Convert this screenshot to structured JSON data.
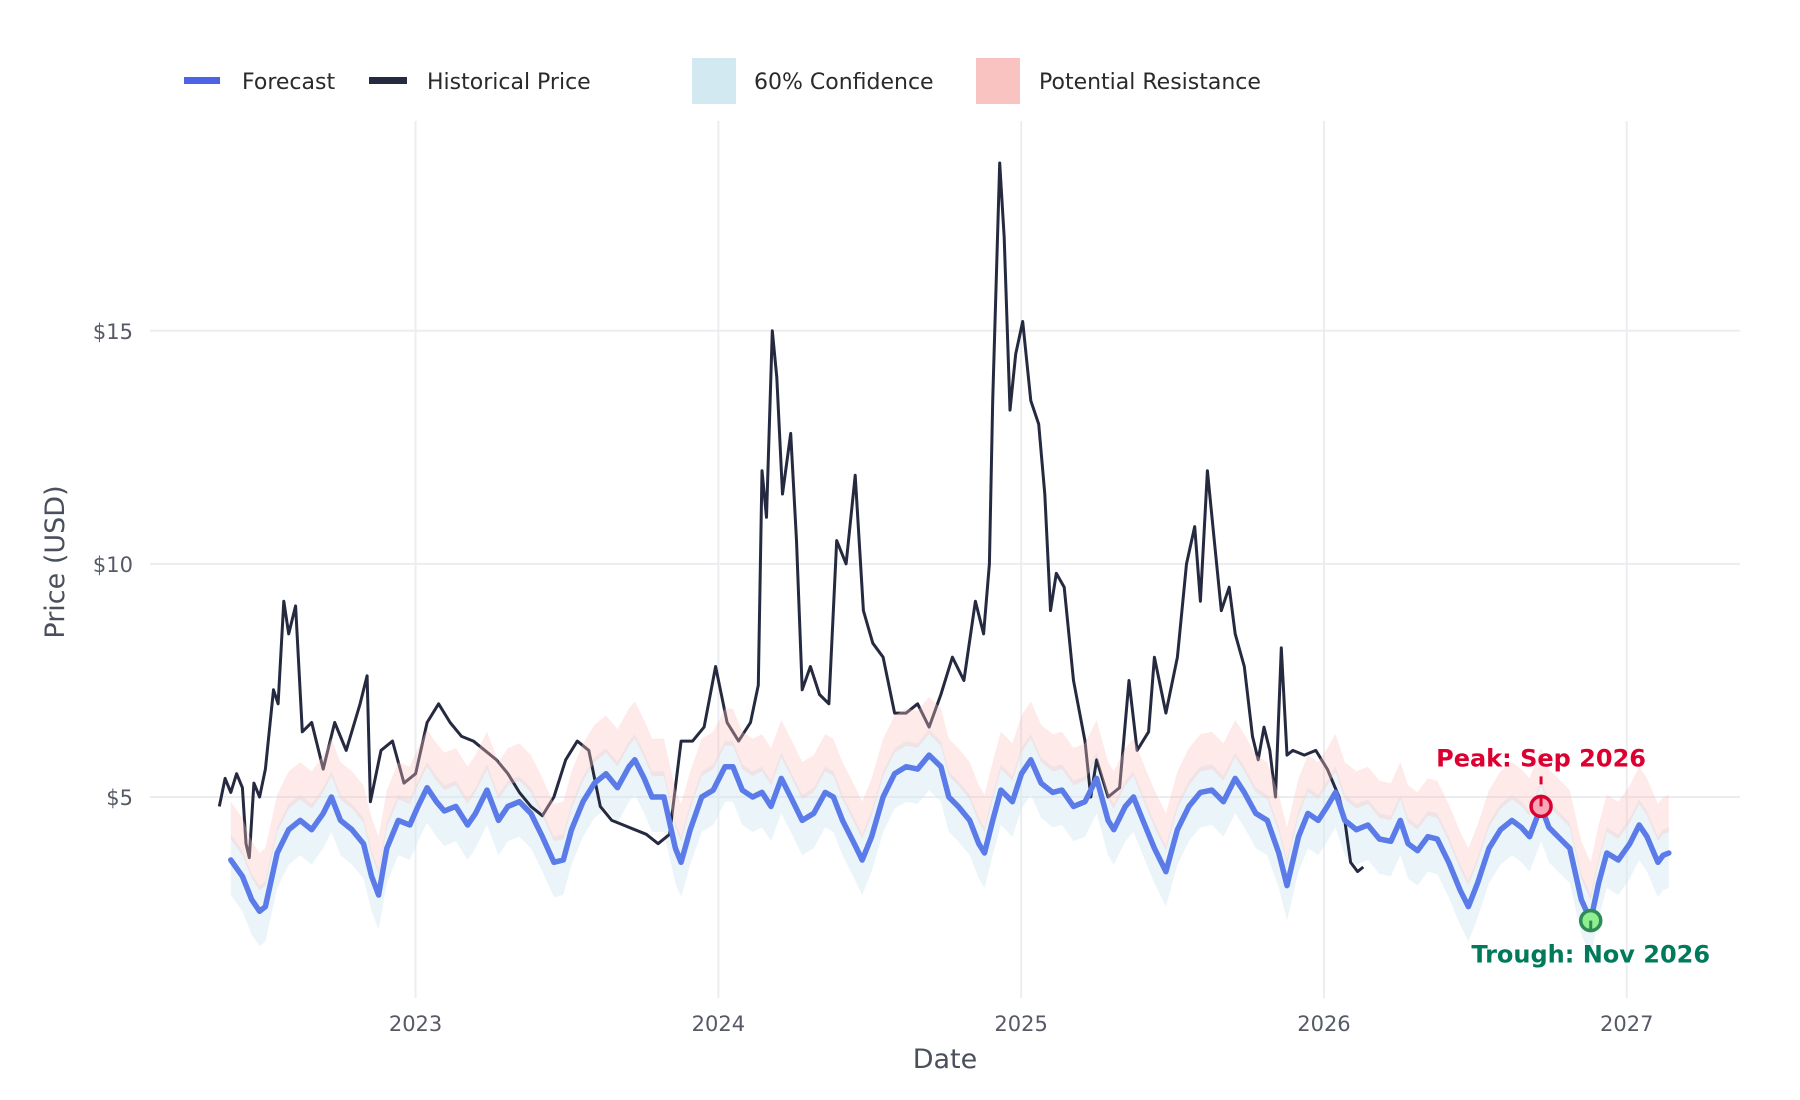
{
  "chart_data": {
    "type": "line",
    "title": "",
    "xlabel": "Date",
    "ylabel": "Price (USD)",
    "xlim": [
      2022.123,
      2027.374
    ],
    "ylim": [
      0.69,
      19.5
    ],
    "grid": true,
    "legend_placement": "top-left",
    "x_ticks": [
      {
        "value": 2023,
        "label": "2023"
      },
      {
        "value": 2024,
        "label": "2024"
      },
      {
        "value": 2025,
        "label": "2025"
      },
      {
        "value": 2026,
        "label": "2026"
      },
      {
        "value": 2027,
        "label": "2027"
      }
    ],
    "y_ticks": [
      {
        "value": 5,
        "label": "$5"
      },
      {
        "value": 10,
        "label": "$10"
      },
      {
        "value": 15,
        "label": "$15"
      }
    ],
    "legend": [
      {
        "key": "forecast",
        "label": "Forecast",
        "type": "line"
      },
      {
        "key": "historical",
        "label": "Historical Price",
        "type": "line"
      },
      {
        "key": "confidence",
        "label": "60% Confidence",
        "type": "band"
      },
      {
        "key": "resistance",
        "label": "Potential Resistance",
        "type": "band"
      }
    ],
    "colors": {
      "forecast": "#5a7be8",
      "forecast_legend": "#4a63e7",
      "historical": "#262a40",
      "confidence": "#d3e9f2",
      "resistance": "#f8c3c0",
      "grid": "#ebedf0",
      "peak": "#dc0030",
      "peak_fill": "#f7a8b8",
      "trough": "#007a5a",
      "trough_fill": "#90ee90",
      "trough_border": "#2e8b57"
    },
    "bands": {
      "confidence_offsets": [
        -0.75,
        0.55
      ],
      "resistance_offsets": [
        0.45,
        1.25
      ]
    },
    "series": [
      {
        "name": "Historical Price",
        "key": "historical",
        "points": [
          [
            2022.352,
            4.8
          ],
          [
            2022.371,
            5.4
          ],
          [
            2022.39,
            5.1
          ],
          [
            2022.409,
            5.5
          ],
          [
            2022.428,
            5.2
          ],
          [
            2022.44,
            4.0
          ],
          [
            2022.451,
            3.7
          ],
          [
            2022.466,
            5.3
          ],
          [
            2022.485,
            5.0
          ],
          [
            2022.504,
            5.6
          ],
          [
            2022.531,
            7.3
          ],
          [
            2022.546,
            7.0
          ],
          [
            2022.565,
            9.2
          ],
          [
            2022.581,
            8.5
          ],
          [
            2022.604,
            9.1
          ],
          [
            2022.626,
            6.4
          ],
          [
            2022.657,
            6.6
          ],
          [
            2022.695,
            5.6
          ],
          [
            2022.733,
            6.6
          ],
          [
            2022.771,
            6.0
          ],
          [
            2022.817,
            7.0
          ],
          [
            2022.84,
            7.6
          ],
          [
            2022.851,
            4.9
          ],
          [
            2022.886,
            6.0
          ],
          [
            2022.924,
            6.2
          ],
          [
            2022.962,
            5.3
          ],
          [
            2023.0,
            5.5
          ],
          [
            2023.038,
            6.6
          ],
          [
            2023.076,
            7.0
          ],
          [
            2023.114,
            6.6
          ],
          [
            2023.152,
            6.3
          ],
          [
            2023.191,
            6.2
          ],
          [
            2023.229,
            6.0
          ],
          [
            2023.267,
            5.8
          ],
          [
            2023.305,
            5.5
          ],
          [
            2023.343,
            5.1
          ],
          [
            2023.381,
            4.8
          ],
          [
            2023.419,
            4.6
          ],
          [
            2023.457,
            5.0
          ],
          [
            2023.496,
            5.8
          ],
          [
            2023.534,
            6.2
          ],
          [
            2023.572,
            6.0
          ],
          [
            2023.61,
            4.8
          ],
          [
            2023.648,
            4.5
          ],
          [
            2023.686,
            4.4
          ],
          [
            2023.724,
            4.3
          ],
          [
            2023.762,
            4.2
          ],
          [
            2023.801,
            4.0
          ],
          [
            2023.839,
            4.2
          ],
          [
            2023.877,
            6.2
          ],
          [
            2023.915,
            6.2
          ],
          [
            2023.953,
            6.5
          ],
          [
            2023.991,
            7.8
          ],
          [
            2024.029,
            6.6
          ],
          [
            2024.067,
            6.2
          ],
          [
            2024.106,
            6.6
          ],
          [
            2024.132,
            7.4
          ],
          [
            2024.144,
            12.0
          ],
          [
            2024.159,
            11.0
          ],
          [
            2024.178,
            15.0
          ],
          [
            2024.193,
            14.0
          ],
          [
            2024.212,
            11.5
          ],
          [
            2024.239,
            12.8
          ],
          [
            2024.258,
            10.5
          ],
          [
            2024.277,
            7.3
          ],
          [
            2024.304,
            7.8
          ],
          [
            2024.334,
            7.2
          ],
          [
            2024.365,
            7.0
          ],
          [
            2024.391,
            10.5
          ],
          [
            2024.422,
            10.0
          ],
          [
            2024.452,
            11.9
          ],
          [
            2024.479,
            9.0
          ],
          [
            2024.51,
            8.3
          ],
          [
            2024.544,
            8.0
          ],
          [
            2024.582,
            6.8
          ],
          [
            2024.62,
            6.8
          ],
          [
            2024.658,
            7.0
          ],
          [
            2024.696,
            6.5
          ],
          [
            2024.735,
            7.2
          ],
          [
            2024.773,
            8.0
          ],
          [
            2024.811,
            7.5
          ],
          [
            2024.849,
            9.2
          ],
          [
            2024.876,
            8.5
          ],
          [
            2024.895,
            10.0
          ],
          [
            2024.906,
            13.5
          ],
          [
            2024.929,
            18.6
          ],
          [
            2024.944,
            17.0
          ],
          [
            2024.963,
            13.3
          ],
          [
            2024.982,
            14.5
          ],
          [
            2025.005,
            15.2
          ],
          [
            2025.032,
            13.5
          ],
          [
            2025.058,
            13.0
          ],
          [
            2025.078,
            11.5
          ],
          [
            2025.097,
            9.0
          ],
          [
            2025.116,
            9.8
          ],
          [
            2025.142,
            9.5
          ],
          [
            2025.173,
            7.5
          ],
          [
            2025.211,
            6.2
          ],
          [
            2025.23,
            5.0
          ],
          [
            2025.249,
            5.8
          ],
          [
            2025.287,
            5.0
          ],
          [
            2025.325,
            5.2
          ],
          [
            2025.356,
            7.5
          ],
          [
            2025.383,
            6.0
          ],
          [
            2025.421,
            6.4
          ],
          [
            2025.44,
            8.0
          ],
          [
            2025.478,
            6.8
          ],
          [
            2025.516,
            8.0
          ],
          [
            2025.546,
            10.0
          ],
          [
            2025.573,
            10.8
          ],
          [
            2025.592,
            9.2
          ],
          [
            2025.615,
            12.0
          ],
          [
            2025.638,
            10.5
          ],
          [
            2025.661,
            9.0
          ],
          [
            2025.687,
            9.5
          ],
          [
            2025.707,
            8.5
          ],
          [
            2025.737,
            7.8
          ],
          [
            2025.764,
            6.3
          ],
          [
            2025.783,
            5.8
          ],
          [
            2025.802,
            6.5
          ],
          [
            2025.821,
            6.0
          ],
          [
            2025.84,
            5.0
          ],
          [
            2025.859,
            8.2
          ],
          [
            2025.878,
            5.9
          ],
          [
            2025.897,
            6.0
          ],
          [
            2025.935,
            5.9
          ],
          [
            2025.973,
            6.0
          ],
          [
            2026.011,
            5.6
          ],
          [
            2026.05,
            5.0
          ],
          [
            2026.069,
            4.5
          ],
          [
            2026.088,
            3.6
          ],
          [
            2026.111,
            3.4
          ],
          [
            2026.13,
            3.5
          ]
        ]
      },
      {
        "name": "Forecast",
        "key": "forecast",
        "points": [
          [
            2022.39,
            3.65
          ],
          [
            2022.428,
            3.3
          ],
          [
            2022.459,
            2.8
          ],
          [
            2022.485,
            2.55
          ],
          [
            2022.504,
            2.65
          ],
          [
            2022.543,
            3.8
          ],
          [
            2022.581,
            4.3
          ],
          [
            2022.619,
            4.5
          ],
          [
            2022.657,
            4.3
          ],
          [
            2022.695,
            4.65
          ],
          [
            2022.722,
            5.0
          ],
          [
            2022.752,
            4.5
          ],
          [
            2022.79,
            4.3
          ],
          [
            2022.828,
            4.0
          ],
          [
            2022.855,
            3.3
          ],
          [
            2022.878,
            2.9
          ],
          [
            2022.905,
            3.9
          ],
          [
            2022.943,
            4.5
          ],
          [
            2022.981,
            4.4
          ],
          [
            2023.008,
            4.8
          ],
          [
            2023.038,
            5.2
          ],
          [
            2023.069,
            4.9
          ],
          [
            2023.095,
            4.7
          ],
          [
            2023.133,
            4.8
          ],
          [
            2023.172,
            4.4
          ],
          [
            2023.198,
            4.65
          ],
          [
            2023.236,
            5.15
          ],
          [
            2023.274,
            4.5
          ],
          [
            2023.305,
            4.8
          ],
          [
            2023.343,
            4.9
          ],
          [
            2023.381,
            4.65
          ],
          [
            2023.419,
            4.15
          ],
          [
            2023.457,
            3.6
          ],
          [
            2023.488,
            3.65
          ],
          [
            2023.515,
            4.3
          ],
          [
            2023.553,
            4.9
          ],
          [
            2023.591,
            5.3
          ],
          [
            2023.629,
            5.5
          ],
          [
            2023.667,
            5.2
          ],
          [
            2023.705,
            5.65
          ],
          [
            2023.724,
            5.8
          ],
          [
            2023.755,
            5.4
          ],
          [
            2023.781,
            5.0
          ],
          [
            2023.82,
            5.0
          ],
          [
            2023.858,
            3.9
          ],
          [
            2023.877,
            3.6
          ],
          [
            2023.907,
            4.3
          ],
          [
            2023.945,
            5.0
          ],
          [
            2023.983,
            5.15
          ],
          [
            2024.022,
            5.65
          ],
          [
            2024.048,
            5.65
          ],
          [
            2024.079,
            5.15
          ],
          [
            2024.113,
            5.0
          ],
          [
            2024.144,
            5.1
          ],
          [
            2024.174,
            4.8
          ],
          [
            2024.208,
            5.4
          ],
          [
            2024.239,
            5.0
          ],
          [
            2024.277,
            4.5
          ],
          [
            2024.315,
            4.65
          ],
          [
            2024.353,
            5.1
          ],
          [
            2024.38,
            5.0
          ],
          [
            2024.41,
            4.5
          ],
          [
            2024.449,
            4.0
          ],
          [
            2024.475,
            3.65
          ],
          [
            2024.506,
            4.15
          ],
          [
            2024.544,
            5.0
          ],
          [
            2024.582,
            5.5
          ],
          [
            2024.62,
            5.65
          ],
          [
            2024.658,
            5.6
          ],
          [
            2024.696,
            5.9
          ],
          [
            2024.735,
            5.65
          ],
          [
            2024.761,
            5.0
          ],
          [
            2024.792,
            4.8
          ],
          [
            2024.83,
            4.5
          ],
          [
            2024.86,
            4.0
          ],
          [
            2024.879,
            3.8
          ],
          [
            2024.906,
            4.5
          ],
          [
            2024.933,
            5.15
          ],
          [
            2024.971,
            4.9
          ],
          [
            2025.001,
            5.5
          ],
          [
            2025.032,
            5.8
          ],
          [
            2025.066,
            5.3
          ],
          [
            2025.104,
            5.1
          ],
          [
            2025.135,
            5.15
          ],
          [
            2025.173,
            4.8
          ],
          [
            2025.211,
            4.9
          ],
          [
            2025.249,
            5.4
          ],
          [
            2025.287,
            4.5
          ],
          [
            2025.306,
            4.3
          ],
          [
            2025.344,
            4.8
          ],
          [
            2025.371,
            5.0
          ],
          [
            2025.402,
            4.5
          ],
          [
            2025.44,
            3.9
          ],
          [
            2025.478,
            3.4
          ],
          [
            2025.516,
            4.3
          ],
          [
            2025.554,
            4.8
          ],
          [
            2025.592,
            5.1
          ],
          [
            2025.63,
            5.15
          ],
          [
            2025.668,
            4.9
          ],
          [
            2025.707,
            5.4
          ],
          [
            2025.737,
            5.1
          ],
          [
            2025.775,
            4.65
          ],
          [
            2025.813,
            4.5
          ],
          [
            2025.851,
            3.8
          ],
          [
            2025.878,
            3.1
          ],
          [
            2025.916,
            4.15
          ],
          [
            2025.947,
            4.65
          ],
          [
            2025.981,
            4.5
          ],
          [
            2026.011,
            4.8
          ],
          [
            2026.038,
            5.1
          ],
          [
            2026.069,
            4.5
          ],
          [
            2026.107,
            4.3
          ],
          [
            2026.145,
            4.4
          ],
          [
            2026.183,
            4.1
          ],
          [
            2026.221,
            4.05
          ],
          [
            2026.252,
            4.5
          ],
          [
            2026.278,
            4.0
          ],
          [
            2026.309,
            3.85
          ],
          [
            2026.343,
            4.15
          ],
          [
            2026.374,
            4.1
          ],
          [
            2026.412,
            3.6
          ],
          [
            2026.45,
            3.0
          ],
          [
            2026.477,
            2.65
          ],
          [
            2026.507,
            3.15
          ],
          [
            2026.545,
            3.9
          ],
          [
            2026.583,
            4.3
          ],
          [
            2026.621,
            4.5
          ],
          [
            2026.652,
            4.35
          ],
          [
            2026.679,
            4.15
          ],
          [
            2026.717,
            4.8
          ],
          [
            2026.743,
            4.35
          ],
          [
            2026.781,
            4.1
          ],
          [
            2026.812,
            3.9
          ],
          [
            2026.85,
            2.8
          ],
          [
            2026.881,
            2.35
          ],
          [
            2026.907,
            3.15
          ],
          [
            2026.934,
            3.8
          ],
          [
            2026.972,
            3.65
          ],
          [
            2027.01,
            4.0
          ],
          [
            2027.041,
            4.4
          ],
          [
            2027.067,
            4.15
          ],
          [
            2027.103,
            3.6
          ],
          [
            2027.12,
            3.75
          ],
          [
            2027.139,
            3.8
          ]
        ]
      }
    ],
    "annotations": [
      {
        "key": "peak",
        "label": "Peak: Sep 2026",
        "x": 2026.717,
        "y": 4.8
      },
      {
        "key": "trough",
        "label": "Trough: Nov 2026",
        "x": 2026.881,
        "y": 2.35
      }
    ]
  }
}
